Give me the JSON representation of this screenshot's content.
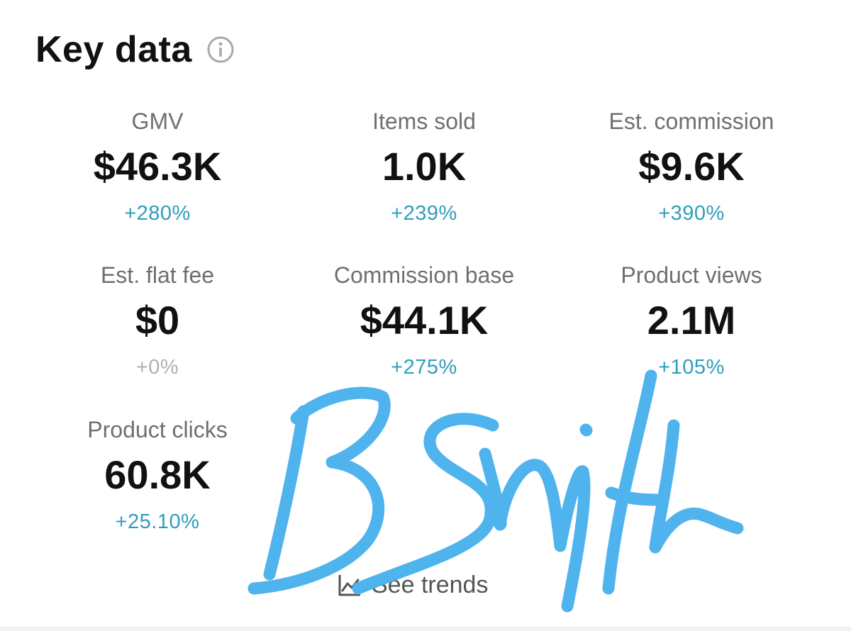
{
  "header": {
    "title": "Key data",
    "info_icon": "info-circle-icon"
  },
  "metrics": [
    {
      "label": "GMV",
      "value": "$46.3K",
      "change": "+280%"
    },
    {
      "label": "Items sold",
      "value": "1.0K",
      "change": "+239%"
    },
    {
      "label": "Est. commission",
      "value": "$9.6K",
      "change": "+390%"
    },
    {
      "label": "Est. flat fee",
      "value": "$0",
      "change": "+0%"
    },
    {
      "label": "Commission base",
      "value": "$44.1K",
      "change": "+275%"
    },
    {
      "label": "Product views",
      "value": "2.1M",
      "change": "+105%"
    },
    {
      "label": "Product clicks",
      "value": "60.8K",
      "change": "+25.10%"
    }
  ],
  "footer": {
    "see_trends_label": "See trends",
    "trend_icon": "line-chart-icon"
  },
  "signature": {
    "text": "BSmith",
    "color": "#4fb3ee"
  },
  "colors": {
    "positive_change": "#2f9ebd",
    "neutral_change": "#b0b0b0",
    "label": "#6f6f6f",
    "value": "#111111"
  }
}
